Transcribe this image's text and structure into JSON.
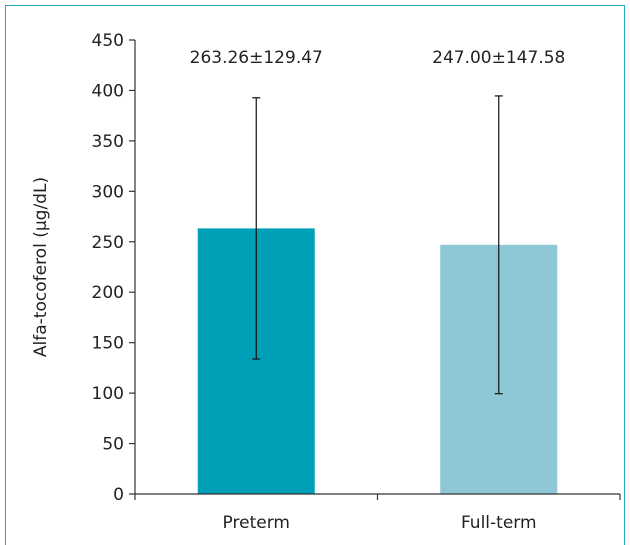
{
  "chart_data": {
    "type": "bar",
    "title": "",
    "xlabel": "",
    "ylabel": "Alfa-tocoferol (μg/dL)",
    "categories": [
      "Preterm",
      "Full-term"
    ],
    "values": [
      263.26,
      247.0
    ],
    "errors": [
      129.47,
      147.58
    ],
    "data_labels": [
      "263.26±129.47",
      "247.00±147.58"
    ],
    "bar_colors": [
      "#009fb8",
      "#8ec7d6"
    ],
    "ylim": [
      0,
      450
    ],
    "yticks": [
      0,
      50,
      100,
      150,
      200,
      250,
      300,
      350,
      400,
      450
    ],
    "grid": false,
    "legend": "none"
  }
}
